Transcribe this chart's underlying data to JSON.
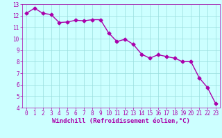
{
  "x": [
    0,
    1,
    2,
    3,
    4,
    5,
    6,
    7,
    8,
    9,
    10,
    11,
    12,
    13,
    14,
    15,
    16,
    17,
    18,
    19,
    20,
    21,
    22,
    23
  ],
  "y": [
    12.2,
    12.65,
    12.2,
    12.1,
    11.4,
    11.45,
    11.6,
    11.55,
    11.65,
    11.65,
    10.5,
    9.75,
    9.95,
    9.5,
    8.65,
    8.3,
    8.6,
    8.45,
    8.3,
    8.0,
    8.0,
    6.6,
    5.75,
    4.35
  ],
  "line_color": "#aa00aa",
  "marker": "D",
  "marker_size": 2.5,
  "bg_color": "#ccffff",
  "grid_color": "#99dddd",
  "xlabel": "Windchill (Refroidissement éolien,°C)",
  "xlabel_color": "#aa00aa",
  "ylim": [
    4,
    13
  ],
  "xlim": [
    -0.5,
    23.5
  ],
  "yticks": [
    4,
    5,
    6,
    7,
    8,
    9,
    10,
    11,
    12,
    13
  ],
  "xticks": [
    0,
    1,
    2,
    3,
    4,
    5,
    6,
    7,
    8,
    9,
    10,
    11,
    12,
    13,
    14,
    15,
    16,
    17,
    18,
    19,
    20,
    21,
    22,
    23
  ],
  "tick_color": "#aa00aa",
  "tick_fontsize": 5.5,
  "xlabel_fontsize": 6.5,
  "linewidth": 1.0
}
